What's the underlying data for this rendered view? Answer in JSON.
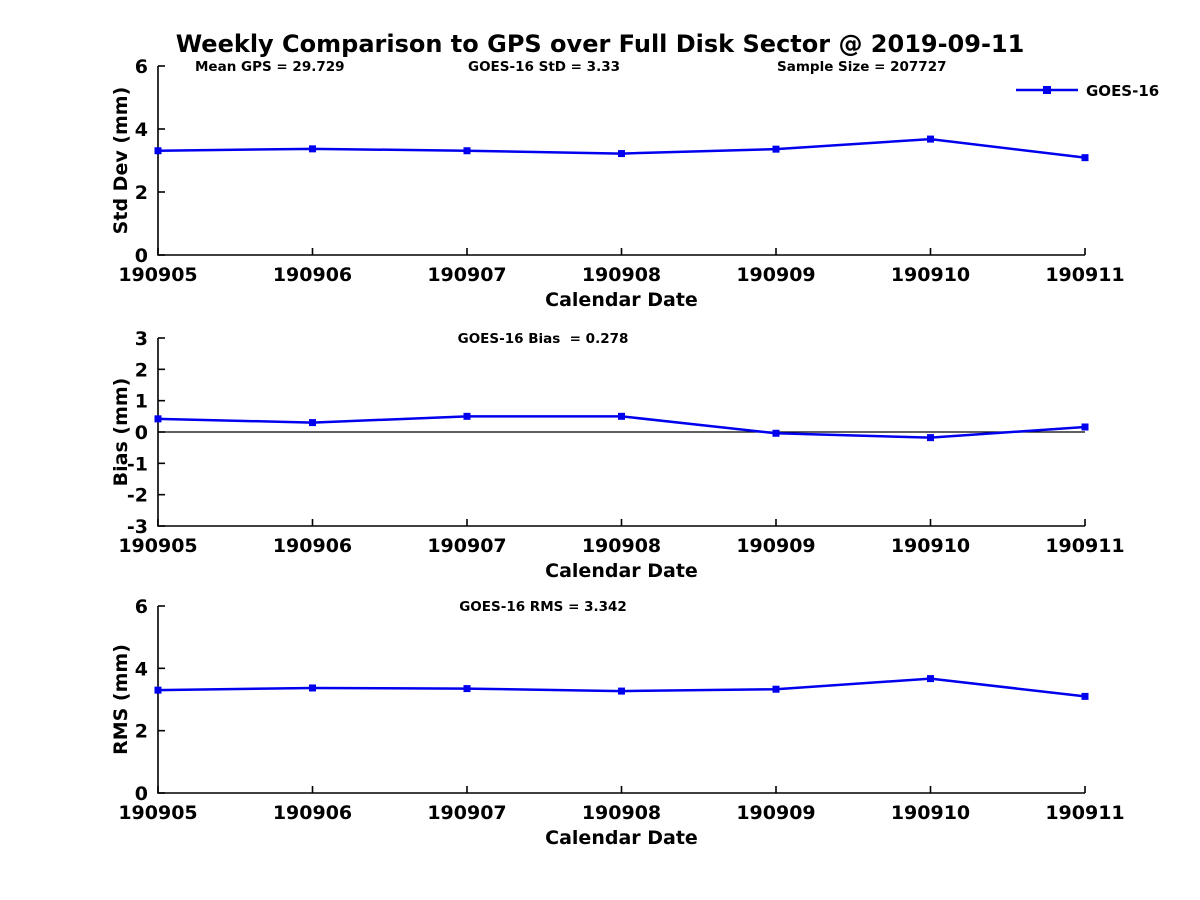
{
  "title": "Weekly Comparison to GPS over Full Disk Sector @ 2019-09-11",
  "series_color": "#0000EE",
  "axis_color": "#000000",
  "legend": {
    "label": "GOES-16"
  },
  "chart_data": [
    {
      "type": "line",
      "annotations": [
        "Mean GPS = 29.729",
        "GOES-16 StD = 3.33",
        "Sample Size = 207727"
      ],
      "categories": [
        "190905",
        "190906",
        "190907",
        "190908",
        "190909",
        "190910",
        "190911"
      ],
      "series": [
        {
          "name": "GOES-16",
          "values": [
            3.31,
            3.37,
            3.31,
            3.22,
            3.36,
            3.68,
            3.09
          ]
        }
      ],
      "xlabel": "Calendar Date",
      "ylabel": "Std Dev (mm)",
      "ylim": [
        0,
        6
      ],
      "yticks": [
        0,
        2,
        4,
        6
      ],
      "grid": false,
      "legend_position": "top-right",
      "marker": "square"
    },
    {
      "type": "line",
      "annotations": [
        "GOES-16 Bias  = 0.278"
      ],
      "categories": [
        "190905",
        "190906",
        "190907",
        "190908",
        "190909",
        "190910",
        "190911"
      ],
      "series": [
        {
          "name": "GOES-16",
          "values": [
            0.42,
            0.3,
            0.5,
            0.5,
            -0.04,
            -0.18,
            0.16
          ]
        }
      ],
      "xlabel": "Calendar Date",
      "ylabel": "Bias (mm)",
      "ylim": [
        -3,
        3
      ],
      "yticks": [
        -3,
        -2,
        -1,
        0,
        1,
        2,
        3
      ],
      "zero_line": true,
      "grid": false,
      "marker": "square"
    },
    {
      "type": "line",
      "annotations": [
        "GOES-16 RMS = 3.342"
      ],
      "categories": [
        "190905",
        "190906",
        "190907",
        "190908",
        "190909",
        "190910",
        "190911"
      ],
      "series": [
        {
          "name": "GOES-16",
          "values": [
            3.3,
            3.37,
            3.35,
            3.27,
            3.33,
            3.67,
            3.1
          ]
        }
      ],
      "xlabel": "Calendar Date",
      "ylabel": "RMS (mm)",
      "ylim": [
        0,
        6
      ],
      "yticks": [
        0,
        2,
        4,
        6
      ],
      "grid": false,
      "marker": "square"
    }
  ]
}
